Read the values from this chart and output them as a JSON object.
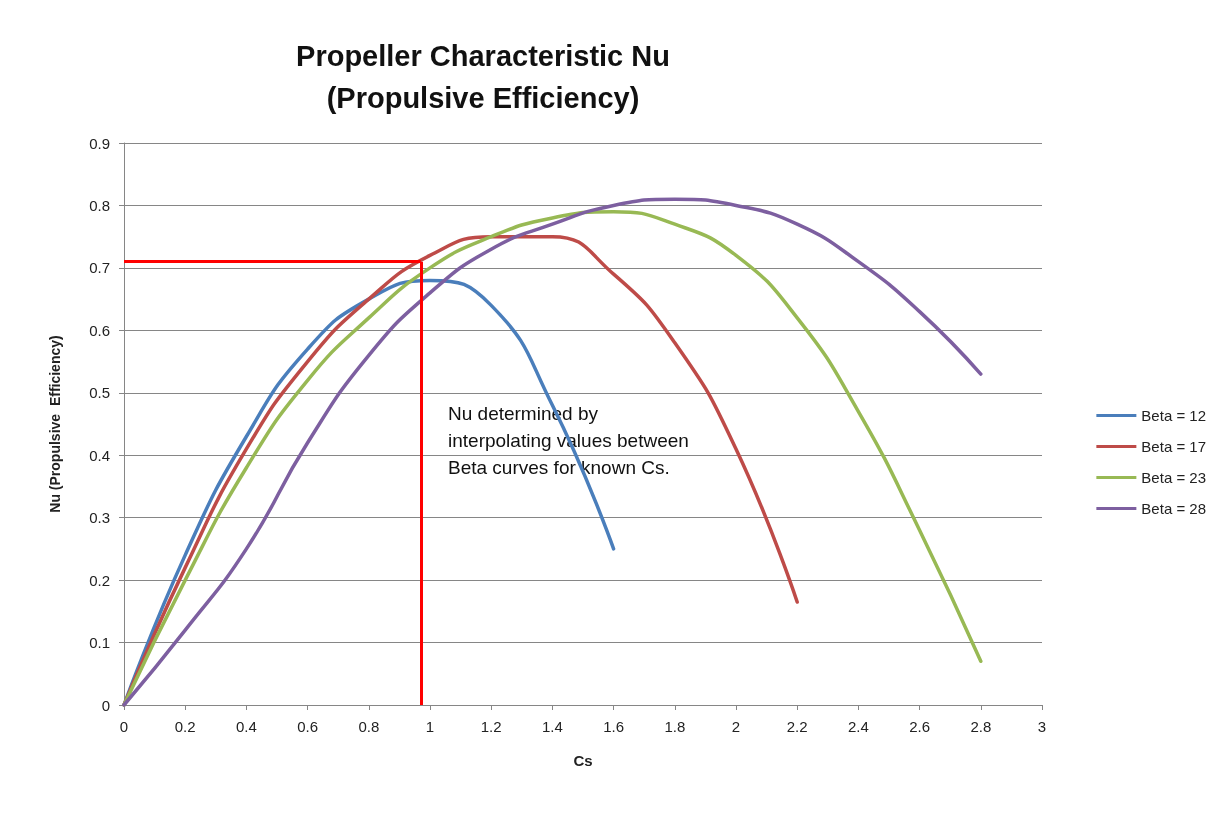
{
  "chart_data": {
    "type": "line",
    "title": "Propeller Characteristic Nu\n(Propulsive Efficiency)",
    "xlabel": "Cs",
    "ylabel": "Nu (Propulsive  Efficiency)",
    "series": [
      {
        "name": "Beta = 12",
        "color": "#4a7ebb",
        "x": [
          0,
          0.2,
          0.4,
          0.6,
          0.8,
          1.0,
          1.2,
          1.4,
          1.6
        ],
        "values": [
          0,
          0.24,
          0.43,
          0.57,
          0.65,
          0.68,
          0.64,
          0.48,
          0.25
        ]
      },
      {
        "name": "Beta = 17",
        "color": "#be4b48",
        "x": [
          0,
          0.2,
          0.4,
          0.6,
          0.8,
          1.0,
          1.2,
          1.4,
          1.6,
          1.8,
          2.0,
          2.2
        ],
        "values": [
          0,
          0.22,
          0.41,
          0.55,
          0.65,
          0.72,
          0.75,
          0.75,
          0.69,
          0.58,
          0.41,
          0.165
        ]
      },
      {
        "name": "Beta = 23",
        "color": "#98b954",
        "x": [
          0,
          0.2,
          0.4,
          0.6,
          0.8,
          1.0,
          1.2,
          1.4,
          1.6,
          1.8,
          2.0,
          2.2,
          2.4,
          2.6,
          2.8
        ],
        "values": [
          0,
          0.2,
          0.38,
          0.52,
          0.62,
          0.7,
          0.75,
          0.78,
          0.79,
          0.77,
          0.72,
          0.62,
          0.47,
          0.28,
          0.07
        ]
      },
      {
        "name": "Beta = 28",
        "color": "#7d5fa0",
        "x": [
          0,
          0.2,
          0.4,
          0.6,
          0.8,
          1.0,
          1.2,
          1.4,
          1.6,
          1.8,
          2.0,
          2.2,
          2.4,
          2.6,
          2.8
        ],
        "values": [
          0,
          0.12,
          0.25,
          0.42,
          0.56,
          0.66,
          0.73,
          0.77,
          0.8,
          0.81,
          0.8,
          0.77,
          0.71,
          0.63,
          0.53
        ]
      }
    ],
    "xlim": [
      0,
      3
    ],
    "xticks": [
      0,
      0.2,
      0.4,
      0.6,
      0.8,
      1,
      1.2,
      1.4,
      1.6,
      1.8,
      2,
      2.2,
      2.4,
      2.6,
      2.8,
      3
    ],
    "ylim": [
      0,
      0.9
    ],
    "yticks": [
      0,
      0.1,
      0.2,
      0.3,
      0.4,
      0.5,
      0.6,
      0.7,
      0.8,
      0.9
    ],
    "ref_lines": [
      {
        "axis": "y",
        "value": 0.71,
        "color": "#ff0000"
      },
      {
        "axis": "x",
        "value": 0.97,
        "color": "#ff0000"
      }
    ],
    "annotations": [
      "Nu determined by interpolating values between Beta curves for known Cs."
    ],
    "grid": "y",
    "legend": "right",
    "marker": "none",
    "line_style": "solid"
  }
}
